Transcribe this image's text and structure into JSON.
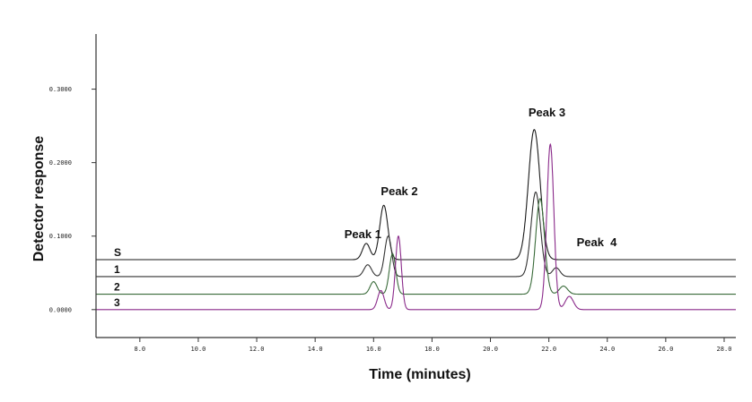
{
  "chart_data": {
    "type": "line",
    "title": "",
    "xlabel": "Time (minutes)",
    "ylabel": "Detector response",
    "xlim": [
      6.5,
      28.4
    ],
    "ylim": [
      -0.038,
      0.375
    ],
    "grid": false,
    "x_ticks": [
      {
        "value": 8,
        "label": "8.0"
      },
      {
        "value": 10,
        "label": "10.0"
      },
      {
        "value": 12,
        "label": "12.0"
      },
      {
        "value": 14,
        "label": "14.0"
      },
      {
        "value": 16,
        "label": "16.0"
      },
      {
        "value": 18,
        "label": "18.0"
      },
      {
        "value": 20,
        "label": "20.0"
      },
      {
        "value": 22,
        "label": "22.0"
      },
      {
        "value": 24,
        "label": "24.0"
      },
      {
        "value": 26,
        "label": "26.0"
      },
      {
        "value": 28,
        "label": "28.0"
      }
    ],
    "y_ticks": [
      {
        "value": 0.0,
        "label": "0.0000"
      },
      {
        "value": 0.1,
        "label": "0.1000"
      },
      {
        "value": 0.2,
        "label": "0.2000"
      },
      {
        "value": 0.3,
        "label": "0.3000"
      }
    ],
    "series": [
      {
        "name": "S",
        "color": "#1a1a1a",
        "baseline": 0.068,
        "peaks": [
          {
            "x": 15.75,
            "height": 0.022,
            "width": 0.13
          },
          {
            "x": 16.35,
            "height": 0.074,
            "width": 0.14
          },
          {
            "x": 21.5,
            "height": 0.177,
            "width": 0.2
          }
        ]
      },
      {
        "name": "1",
        "color": "#333333",
        "baseline": 0.045,
        "peaks": [
          {
            "x": 15.8,
            "height": 0.016,
            "width": 0.13
          },
          {
            "x": 16.5,
            "height": 0.055,
            "width": 0.12
          },
          {
            "x": 21.55,
            "height": 0.115,
            "width": 0.16
          },
          {
            "x": 22.25,
            "height": 0.012,
            "width": 0.13
          }
        ]
      },
      {
        "name": "2",
        "color": "#3a6b3a",
        "baseline": 0.021,
        "peaks": [
          {
            "x": 16.0,
            "height": 0.017,
            "width": 0.12
          },
          {
            "x": 16.65,
            "height": 0.055,
            "width": 0.11
          },
          {
            "x": 21.7,
            "height": 0.13,
            "width": 0.15
          },
          {
            "x": 22.5,
            "height": 0.011,
            "width": 0.14
          }
        ]
      },
      {
        "name": "3",
        "color": "#8a2a8a",
        "baseline": 0.0,
        "peaks": [
          {
            "x": 16.25,
            "height": 0.026,
            "width": 0.11
          },
          {
            "x": 16.85,
            "height": 0.1,
            "width": 0.1
          },
          {
            "x": 22.05,
            "height": 0.225,
            "width": 0.12
          },
          {
            "x": 22.7,
            "height": 0.018,
            "width": 0.14
          }
        ]
      }
    ],
    "annotations": [
      {
        "text": "Peak 1",
        "x": 15.0,
        "y": 0.097
      },
      {
        "text": "Peak 2",
        "x": 16.25,
        "y": 0.156
      },
      {
        "text": "Peak 3",
        "x": 21.3,
        "y": 0.263
      },
      {
        "text": "Peak  4",
        "x": 22.95,
        "y": 0.086
      }
    ]
  }
}
